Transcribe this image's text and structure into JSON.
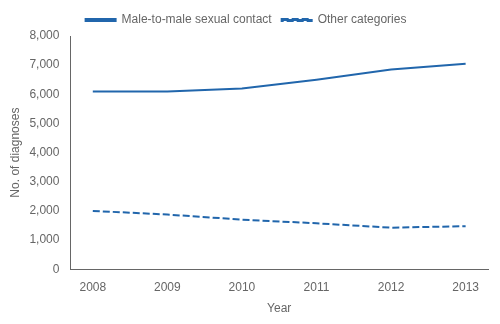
{
  "chart_data": {
    "type": "line",
    "xlabel": "Year",
    "ylabel": "No. of diagnoses",
    "x": [
      2008,
      2009,
      2010,
      2011,
      2012,
      2013
    ],
    "series": [
      {
        "name": "Male-to-male sexual contact",
        "color": "#2166ac",
        "line_style": "solid",
        "values": [
          6100,
          6100,
          6200,
          6500,
          6850,
          7050
        ]
      },
      {
        "name": "Other categories",
        "color": "#2166ac",
        "line_style": "dashed",
        "values": [
          2000,
          1875,
          1700,
          1575,
          1425,
          1475
        ]
      }
    ],
    "xlim": [
      2007.7,
      2013.3
    ],
    "xticks": [
      2008,
      2009,
      2010,
      2011,
      2012,
      2013
    ],
    "ylim": [
      0,
      8000
    ],
    "yticks": [
      0,
      {
        "value": 1000,
        "label": "1,000"
      },
      {
        "value": 2000,
        "label": "2,000"
      },
      {
        "value": 3000,
        "label": "3,000"
      },
      {
        "value": 4000,
        "label": "4,000"
      },
      {
        "value": 5000,
        "label": "5,000"
      },
      {
        "value": 6000,
        "label": "6,000"
      },
      {
        "value": 7000,
        "label": "7,000"
      },
      {
        "value": 8000,
        "label": "8,000"
      }
    ],
    "grid": false,
    "legend": "top"
  }
}
